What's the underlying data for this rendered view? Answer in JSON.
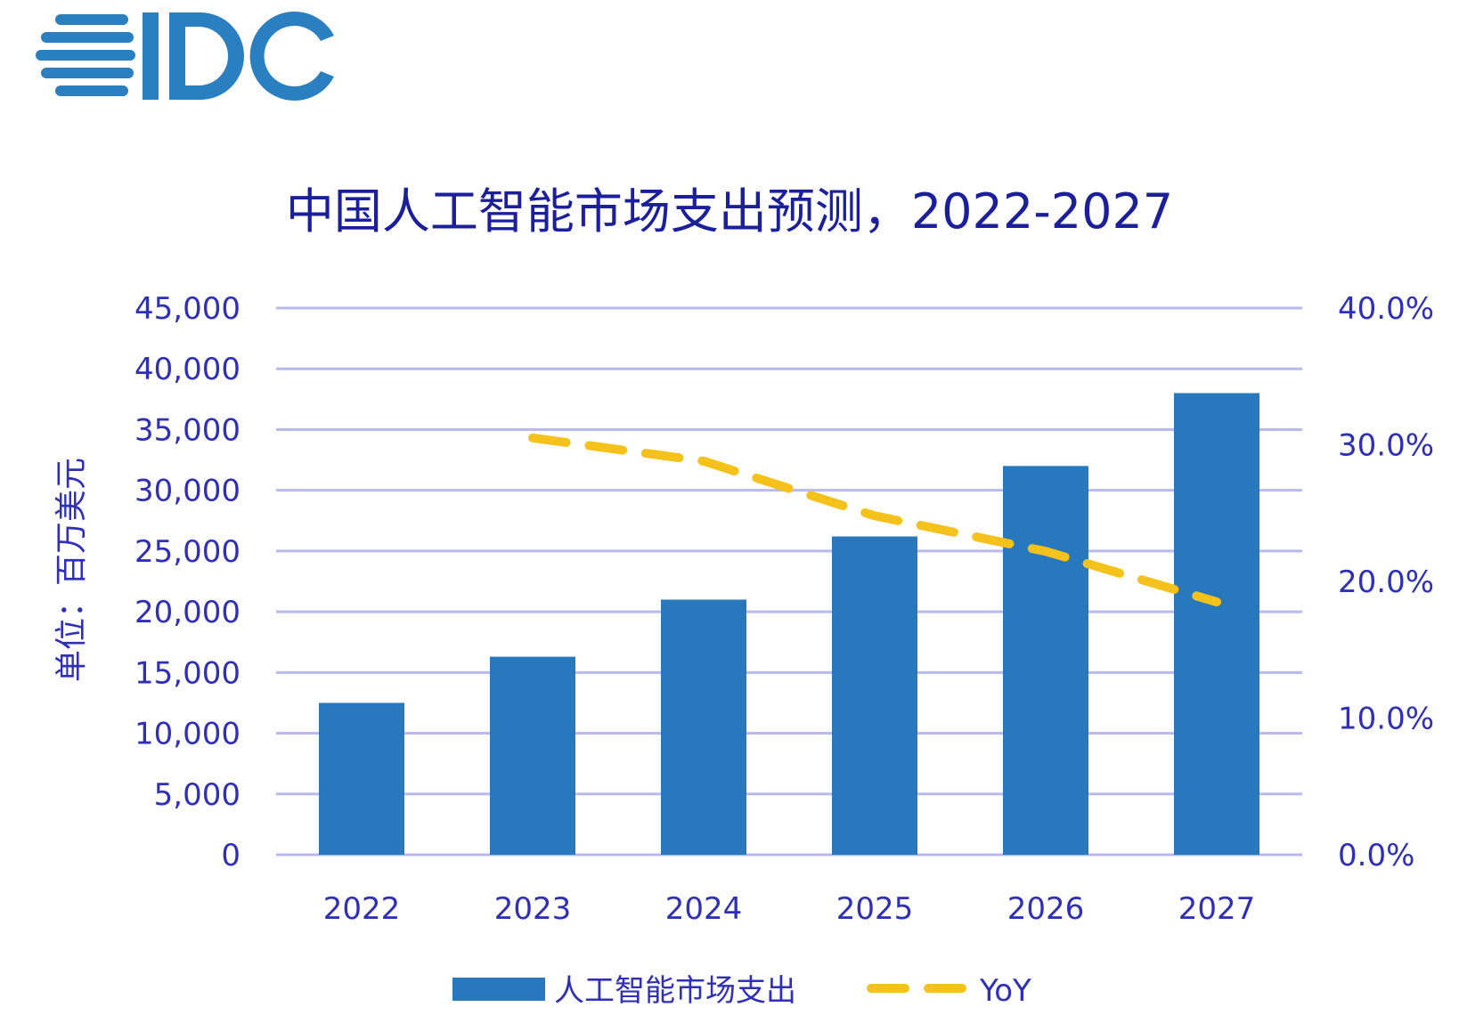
{
  "logo": {
    "text": "IDC",
    "color": "#2a7fc0"
  },
  "chart_data": {
    "type": "bar",
    "title": "中国人工智能市场支出预测，2022-2027",
    "ylabel": "单位：百万美元",
    "xlabel": "",
    "categories": [
      "2022",
      "2023",
      "2024",
      "2025",
      "2026",
      "2027"
    ],
    "ylim": [
      0,
      45000
    ],
    "y2lim": [
      0,
      0.4
    ],
    "y_ticks": [
      "0",
      "5,000",
      "10,000",
      "15,000",
      "20,000",
      "25,000",
      "30,000",
      "35,000",
      "40,000",
      "45,000"
    ],
    "y2_ticks": [
      "0.0%",
      "10.0%",
      "20.0%",
      "30.0%",
      "40.0%"
    ],
    "grid": true,
    "legend_position": "bottom",
    "series": [
      {
        "name": "人工智能市场支出",
        "type": "bar",
        "axis": "left",
        "color": "#2778bc",
        "values": [
          12500,
          16300,
          21000,
          26200,
          32000,
          38000
        ]
      },
      {
        "name": "YoY",
        "type": "line",
        "style": "dashed",
        "axis": "right",
        "color": "#f5c21b",
        "values": [
          null,
          0.305,
          0.288,
          0.248,
          0.222,
          0.185
        ]
      }
    ]
  }
}
